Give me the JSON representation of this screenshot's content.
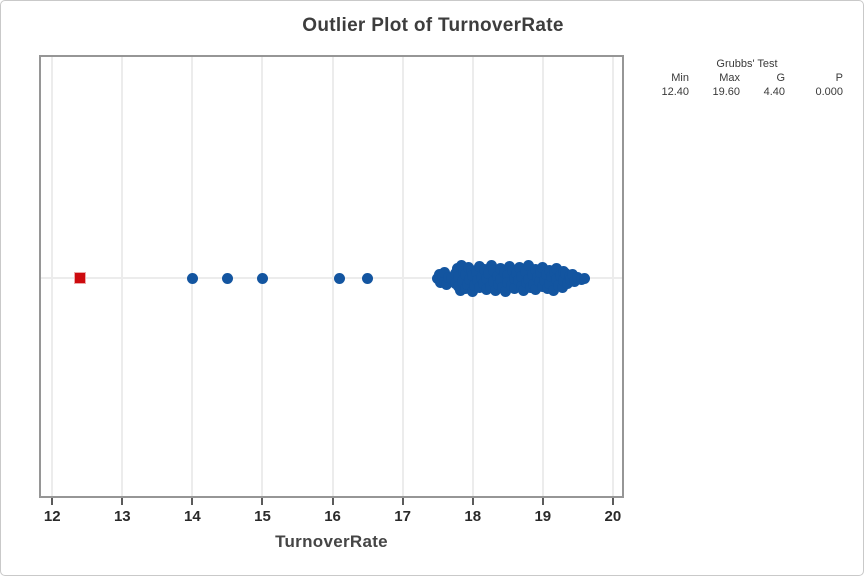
{
  "title": "Outlier Plot of TurnoverRate",
  "xlabel": "TurnoverRate",
  "stats_panel": {
    "header": "Grubbs' Test",
    "columns": [
      "Min",
      "Max",
      "G",
      "P"
    ],
    "values": [
      "12.40",
      "19.60",
      "4.40",
      "0.000"
    ]
  },
  "colors": {
    "point_blue": "#1355a0",
    "outlier_red": "#cd0a0e",
    "gridline": "#ececec",
    "frame": "#969696"
  },
  "chart_data": {
    "type": "scatter",
    "title": "Outlier Plot of TurnoverRate",
    "xlabel": "TurnoverRate",
    "ylabel": "",
    "xlim": [
      11.84,
      20.13
    ],
    "xticks": [
      12,
      13,
      14,
      15,
      16,
      17,
      18,
      19,
      20
    ],
    "grid": {
      "vertical_at_ticks": true,
      "horizontal_center_line": true
    },
    "legend": "none",
    "marker": "circle",
    "outlier_marker": "square",
    "grubbs_test": {
      "min": 12.4,
      "max": 19.6,
      "G": 4.4,
      "P": 0.0
    },
    "outlier": {
      "x": 12.4,
      "jitter": 0
    },
    "points": [
      [
        14.0,
        0
      ],
      [
        14.5,
        0
      ],
      [
        15.0,
        0
      ],
      [
        16.1,
        0
      ],
      [
        16.5,
        0
      ],
      [
        17.5,
        0
      ],
      [
        17.52,
        -4
      ],
      [
        17.54,
        4
      ],
      [
        17.57,
        -2
      ],
      [
        17.6,
        3
      ],
      [
        17.6,
        -6
      ],
      [
        17.63,
        6
      ],
      [
        17.66,
        -1
      ],
      [
        17.7,
        0
      ],
      [
        17.75,
        -5
      ],
      [
        17.76,
        5
      ],
      [
        17.78,
        -10
      ],
      [
        17.8,
        8
      ],
      [
        17.8,
        -2
      ],
      [
        17.82,
        12
      ],
      [
        17.84,
        -13
      ],
      [
        17.85,
        3
      ],
      [
        17.87,
        -7
      ],
      [
        17.9,
        10
      ],
      [
        17.9,
        -4
      ],
      [
        17.92,
        6
      ],
      [
        17.94,
        -11
      ],
      [
        17.96,
        1
      ],
      [
        17.98,
        -8
      ],
      [
        18.0,
        13
      ],
      [
        18.0,
        -3
      ],
      [
        18.02,
        7
      ],
      [
        18.05,
        -6
      ],
      [
        18.07,
        2
      ],
      [
        18.1,
        -12
      ],
      [
        18.1,
        9
      ],
      [
        18.12,
        -1
      ],
      [
        18.15,
        5
      ],
      [
        18.17,
        -9
      ],
      [
        18.2,
        11
      ],
      [
        18.2,
        0
      ],
      [
        18.22,
        -5
      ],
      [
        18.25,
        8
      ],
      [
        18.27,
        -13
      ],
      [
        18.3,
        3
      ],
      [
        18.3,
        -8
      ],
      [
        18.33,
        12
      ],
      [
        18.35,
        -2
      ],
      [
        18.37,
        6
      ],
      [
        18.4,
        -10
      ],
      [
        18.4,
        1
      ],
      [
        18.43,
        9
      ],
      [
        18.45,
        -6
      ],
      [
        18.47,
        13
      ],
      [
        18.5,
        -3
      ],
      [
        18.5,
        4
      ],
      [
        18.53,
        -12
      ],
      [
        18.55,
        7
      ],
      [
        18.57,
        -8
      ],
      [
        18.6,
        0
      ],
      [
        18.6,
        10
      ],
      [
        18.63,
        -5
      ],
      [
        18.65,
        2
      ],
      [
        18.67,
        -11
      ],
      [
        18.7,
        8
      ],
      [
        18.7,
        -2
      ],
      [
        18.73,
        12
      ],
      [
        18.75,
        -7
      ],
      [
        18.77,
        4
      ],
      [
        18.8,
        -13
      ],
      [
        18.8,
        1
      ],
      [
        18.83,
        9
      ],
      [
        18.85,
        -4
      ],
      [
        18.87,
        6
      ],
      [
        18.9,
        -9
      ],
      [
        18.9,
        11
      ],
      [
        18.93,
        -1
      ],
      [
        18.95,
        3
      ],
      [
        18.97,
        -6
      ],
      [
        19.0,
        8
      ],
      [
        19.0,
        -11
      ],
      [
        19.03,
        2
      ],
      [
        19.05,
        -4
      ],
      [
        19.07,
        10
      ],
      [
        19.1,
        -8
      ],
      [
        19.1,
        5
      ],
      [
        19.13,
        -2
      ],
      [
        19.15,
        12
      ],
      [
        19.17,
        -6
      ],
      [
        19.2,
        1
      ],
      [
        19.2,
        -10
      ],
      [
        19.23,
        7
      ],
      [
        19.25,
        -3
      ],
      [
        19.28,
        9
      ],
      [
        19.3,
        -7
      ],
      [
        19.3,
        2
      ],
      [
        19.33,
        -5
      ],
      [
        19.35,
        5
      ],
      [
        19.38,
        -2
      ],
      [
        19.4,
        1
      ],
      [
        19.42,
        -4
      ],
      [
        19.45,
        3
      ],
      [
        19.5,
        -1
      ],
      [
        19.55,
        1
      ],
      [
        19.6,
        0
      ]
    ]
  }
}
